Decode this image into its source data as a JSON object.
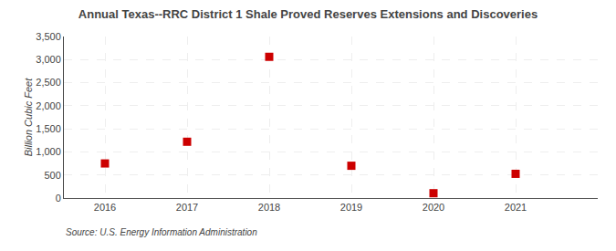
{
  "chart_data": {
    "type": "scatter",
    "title": "Annual Texas--RRC District 1 Shale Proved Reserves Extensions and Discoveries",
    "ylabel": "Billion Cubic Feet",
    "annotations": [
      "Source: U.S. Energy Information Administration"
    ],
    "x": [
      2016,
      2017,
      2018,
      2019,
      2020,
      2021
    ],
    "values": [
      750,
      1220,
      3060,
      700,
      105,
      525
    ],
    "color": "#cc0000",
    "marker": "square",
    "xlim": [
      2015.5,
      2022.0
    ],
    "xticks": [
      2016,
      2017,
      2018,
      2019,
      2020,
      2021
    ],
    "ylim": [
      0,
      3500
    ],
    "yticks": [
      0,
      500,
      {
        "value": 1000,
        "label": "1,000"
      },
      {
        "value": 1500,
        "label": "1,500"
      },
      {
        "value": 2000,
        "label": "2,000"
      },
      {
        "value": 2500,
        "label": "2,500"
      },
      {
        "value": 3000,
        "label": "3,000"
      },
      {
        "value": 3500,
        "label": "3,500"
      }
    ],
    "grid": true
  }
}
